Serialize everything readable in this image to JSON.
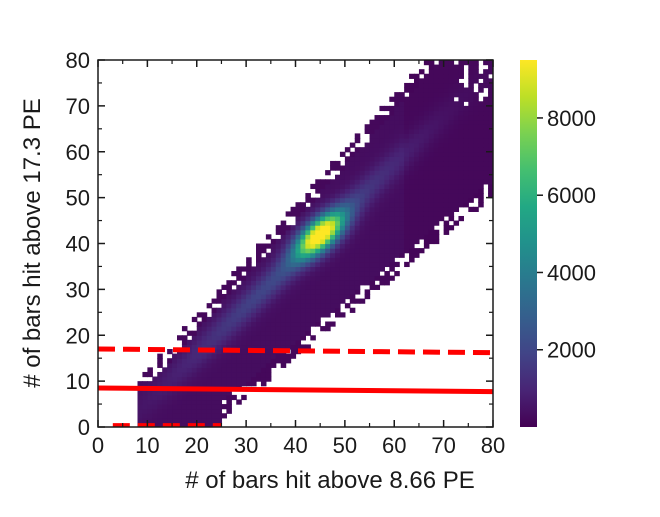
{
  "chart_data": {
    "type": "heatmap",
    "title": "",
    "xlabel": "# of bars hit above 8.66 PE",
    "ylabel": "# of bars hit above  17.3 PE",
    "xlim": [
      0,
      80
    ],
    "ylim": [
      0,
      80
    ],
    "xticks": [
      "0",
      "10",
      "20",
      "30",
      "40",
      "50",
      "60",
      "70",
      "80"
    ],
    "yticks": [
      "0",
      "10",
      "20",
      "30",
      "40",
      "50",
      "60",
      "70",
      "80"
    ],
    "colormap": "viridis",
    "colorbar": {
      "min": 0,
      "max": 9500,
      "ticks": [
        "2000",
        "4000",
        "6000",
        "8000"
      ],
      "tick_values": [
        2000,
        4000,
        6000,
        8000
      ]
    },
    "density": {
      "description_of_shape": "diagonal band",
      "peak_x": 45,
      "peak_y": 42,
      "peak_count": 9500,
      "min_x": 8,
      "band_slope_upper": 1.2,
      "band_slope_lower": 0.88
    },
    "lines": [
      {
        "style": "solid",
        "color": "#ff0000",
        "points": [
          [
            0,
            8.5
          ],
          [
            80,
            7.7
          ]
        ]
      },
      {
        "style": "dashed",
        "color": "#ff0000",
        "points": [
          [
            0,
            17.0
          ],
          [
            80,
            16.2
          ]
        ]
      },
      {
        "style": "dashed",
        "color": "#ff0000",
        "points": [
          [
            3,
            0.3
          ],
          [
            25,
            0.3
          ]
        ]
      }
    ],
    "grid": false,
    "legend": "none"
  }
}
